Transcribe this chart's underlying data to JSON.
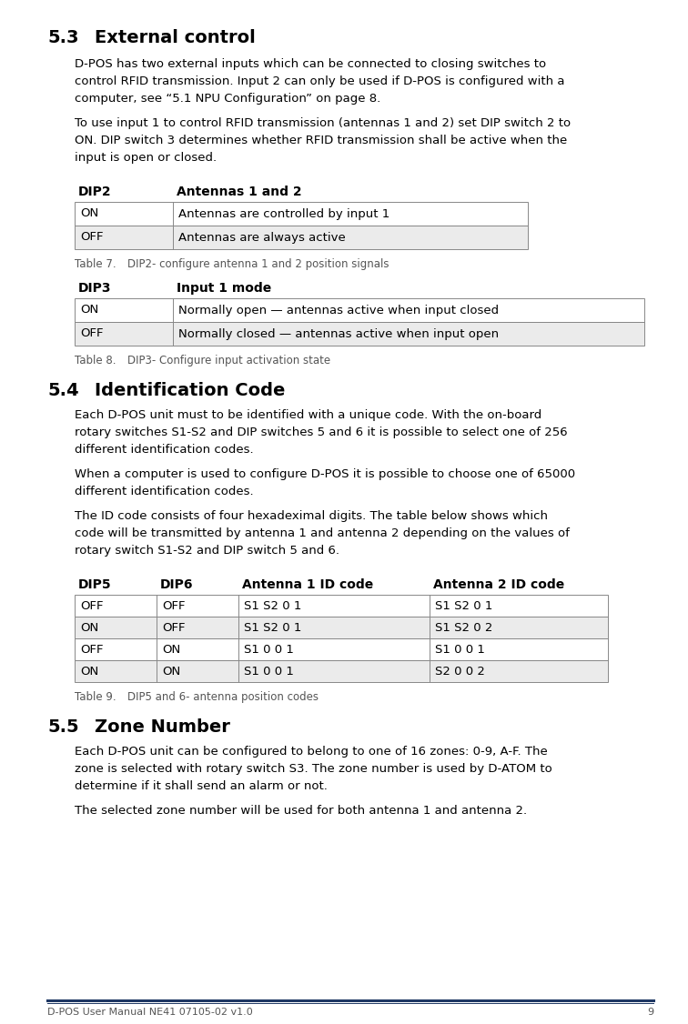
{
  "bg_color": "#ffffff",
  "text_color": "#000000",
  "footer_line_color": "#1f3864",
  "footer_text": "D-POS User Manual NE41 07105-02 v1.0",
  "footer_page": "9",
  "section_53_num": "5.3",
  "section_53_title": "External control",
  "section_53_para1_lines": [
    "D-POS has two external inputs which can be connected to closing switches to",
    "control RFID transmission. Input 2 can only be used if D-POS is configured with a",
    "computer, see “5.1 NPU Configuration” on page 8."
  ],
  "section_53_para2_lines": [
    "To use input 1 to control RFID transmission (antennas 1 and 2) set DIP switch 2 to",
    "ON. DIP switch 3 determines whether RFID transmission shall be active when the",
    "input is open or closed."
  ],
  "table7_header": [
    "DIP2",
    "Antennas 1 and 2"
  ],
  "table7_rows": [
    [
      "ON",
      "Antennas are controlled by input 1"
    ],
    [
      "OFF",
      "Antennas are always active"
    ]
  ],
  "table7_row_colors": [
    "#ffffff",
    "#ebebeb"
  ],
  "table7_caption_num": "Table 7.",
  "table7_caption_text": "DIP2- configure antenna 1 and 2 position signals",
  "table8_header": [
    "DIP3",
    "Input 1 mode"
  ],
  "table8_rows": [
    [
      "ON",
      "Normally open — antennas active when input closed"
    ],
    [
      "OFF",
      "Normally closed — antennas active when input open"
    ]
  ],
  "table8_row_colors": [
    "#ffffff",
    "#ebebeb"
  ],
  "table8_caption_num": "Table 8.",
  "table8_caption_text": "DIP3- Configure input activation state",
  "section_54_num": "5.4",
  "section_54_title": "Identification Code",
  "section_54_para1_lines": [
    "Each D-POS unit must to be identified with a unique code. With the on-board",
    "rotary switches S1-S2 and DIP switches 5 and 6 it is possible to select one of 256",
    "different identification codes."
  ],
  "section_54_para2_lines": [
    "When a computer is used to configure D-POS it is possible to choose one of 65000",
    "different identification codes."
  ],
  "section_54_para3_lines": [
    "The ID code consists of four hexadeximal digits. The table below shows which",
    "code will be transmitted by antenna 1 and antenna 2 depending on the values of",
    "rotary switch S1-S2 and DIP switch 5 and 6."
  ],
  "table9_header": [
    "DIP5",
    "DIP6",
    "Antenna 1 ID code",
    "Antenna 2 ID code"
  ],
  "table9_rows": [
    [
      "OFF",
      "OFF",
      "S1 S2 0 1",
      "S1 S2 0 1"
    ],
    [
      "ON",
      "OFF",
      "S1 S2 0 1",
      "S1 S2 0 2"
    ],
    [
      "OFF",
      "ON",
      "S1 0 0 1",
      "S1 0 0 1"
    ],
    [
      "ON",
      "ON",
      "S1 0 0 1",
      "S2 0 0 2"
    ]
  ],
  "table9_row_colors": [
    "#ffffff",
    "#ebebeb",
    "#ffffff",
    "#ebebeb"
  ],
  "table9_caption_num": "Table 9.",
  "table9_caption_text": "DIP5 and 6- antenna position codes",
  "section_55_num": "5.5",
  "section_55_title": "Zone Number",
  "section_55_para1_lines": [
    "Each D-POS unit can be configured to belong to one of 16 zones: 0-9, A-F. The",
    "zone is selected with rotary switch S3. The zone number is used by D-ATOM to",
    "determine if it shall send an alarm or not."
  ],
  "section_55_para2_lines": [
    "The selected zone number will be used for both antenna 1 and antenna 2."
  ]
}
